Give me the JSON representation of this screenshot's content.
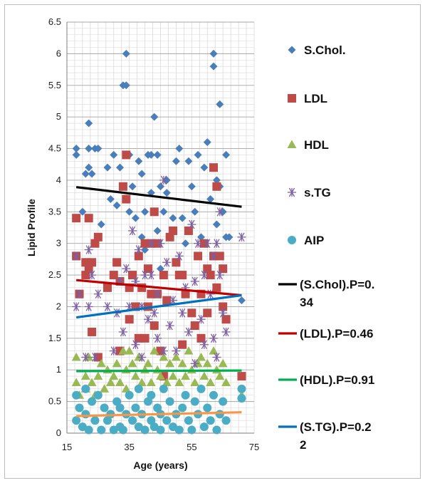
{
  "chart_data": {
    "type": "scatter",
    "xlabel": "Age (years)",
    "ylabel": "Lipid Profile",
    "xlim": [
      15,
      75
    ],
    "ylim": [
      0,
      6.5
    ],
    "x_ticks": [
      "15",
      "35",
      "55",
      "75"
    ],
    "y_ticks": [
      "0",
      "0.5",
      "1",
      "1.5",
      "2",
      "2.5",
      "3",
      "3.5",
      "4",
      "4.5",
      "5",
      "5.5",
      "6",
      "6.5"
    ],
    "grid": true,
    "legend_position": "right",
    "series": [
      {
        "name": "S.Chol.",
        "marker": "diamond",
        "color": "#4a7ebb",
        "points": [
          [
            18,
            4.5
          ],
          [
            18,
            4.4
          ],
          [
            20,
            3.5
          ],
          [
            21,
            4.1
          ],
          [
            22,
            4.9
          ],
          [
            22,
            4.5
          ],
          [
            22,
            4.2
          ],
          [
            23,
            4.1
          ],
          [
            24,
            4.5
          ],
          [
            25,
            4.5
          ],
          [
            26,
            3.3
          ],
          [
            28,
            4.2
          ],
          [
            29,
            3.7
          ],
          [
            30,
            4.4
          ],
          [
            31,
            3.6
          ],
          [
            32,
            4.2
          ],
          [
            33,
            5.5
          ],
          [
            34,
            6.0
          ],
          [
            34,
            5.5
          ],
          [
            35,
            4.4
          ],
          [
            35,
            3.5
          ],
          [
            36,
            3.9
          ],
          [
            37,
            3.4
          ],
          [
            38,
            4.3
          ],
          [
            39,
            4.1
          ],
          [
            39,
            3.1
          ],
          [
            40,
            3.5
          ],
          [
            40,
            2.9
          ],
          [
            41,
            4.4
          ],
          [
            42,
            4.4
          ],
          [
            42,
            3.8
          ],
          [
            43,
            5.0
          ],
          [
            43,
            3.5
          ],
          [
            44,
            4.4
          ],
          [
            44,
            3.2
          ],
          [
            45,
            3.9
          ],
          [
            45,
            2.6
          ],
          [
            46,
            3.5
          ],
          [
            47,
            4.0
          ],
          [
            47,
            3.8
          ],
          [
            48,
            3.1
          ],
          [
            49,
            3.4
          ],
          [
            50,
            4.3
          ],
          [
            51,
            4.5
          ],
          [
            52,
            3.4
          ],
          [
            53,
            3.0
          ],
          [
            54,
            4.3
          ],
          [
            55,
            3.9
          ],
          [
            56,
            3.5
          ],
          [
            57,
            4.4
          ],
          [
            58,
            3.1
          ],
          [
            59,
            4.2
          ],
          [
            60,
            4.6
          ],
          [
            61,
            3.7
          ],
          [
            62,
            6.0
          ],
          [
            62,
            5.8
          ],
          [
            63,
            4.0
          ],
          [
            63,
            3.3
          ],
          [
            64,
            5.2
          ],
          [
            64,
            3.9
          ],
          [
            65,
            3.5
          ],
          [
            66,
            4.4
          ],
          [
            66,
            3.1
          ],
          [
            67,
            3.1
          ],
          [
            71,
            2.1
          ]
        ]
      },
      {
        "name": "LDL",
        "marker": "square",
        "color": "#be4b48",
        "points": [
          [
            18,
            3.4
          ],
          [
            18,
            2.8
          ],
          [
            19,
            2.2
          ],
          [
            21,
            2.7
          ],
          [
            21,
            2.5
          ],
          [
            22,
            3.4
          ],
          [
            22,
            2.6
          ],
          [
            23,
            2.7
          ],
          [
            23,
            1.6
          ],
          [
            24,
            3.0
          ],
          [
            25,
            3.1
          ],
          [
            25,
            1.2
          ],
          [
            28,
            2.3
          ],
          [
            30,
            2.5
          ],
          [
            31,
            2.7
          ],
          [
            32,
            2.4
          ],
          [
            32,
            1.3
          ],
          [
            33,
            3.9
          ],
          [
            34,
            4.4
          ],
          [
            34,
            3.7
          ],
          [
            35,
            2.3
          ],
          [
            35,
            1.8
          ],
          [
            36,
            2.5
          ],
          [
            37,
            2.0
          ],
          [
            38,
            2.8
          ],
          [
            38,
            1.5
          ],
          [
            39,
            2.3
          ],
          [
            40,
            3.0
          ],
          [
            40,
            1.5
          ],
          [
            41,
            2.6
          ],
          [
            41,
            2.0
          ],
          [
            42,
            3.0
          ],
          [
            42,
            2.2
          ],
          [
            43,
            3.5
          ],
          [
            43,
            1.7
          ],
          [
            44,
            3.0
          ],
          [
            44,
            2.2
          ],
          [
            45,
            1.3
          ],
          [
            46,
            2.5
          ],
          [
            46,
            0.9
          ],
          [
            47,
            2.1
          ],
          [
            48,
            3.1
          ],
          [
            49,
            3.2
          ],
          [
            50,
            2.7
          ],
          [
            51,
            2.5
          ],
          [
            52,
            2.5
          ],
          [
            52,
            1.4
          ],
          [
            53,
            2.2
          ],
          [
            54,
            3.2
          ],
          [
            55,
            1.9
          ],
          [
            56,
            1.7
          ],
          [
            57,
            2.8
          ],
          [
            58,
            2.2
          ],
          [
            58,
            1.5
          ],
          [
            59,
            3.0
          ],
          [
            60,
            2.6
          ],
          [
            60,
            1.9
          ],
          [
            61,
            2.5
          ],
          [
            62,
            4.2
          ],
          [
            62,
            2.8
          ],
          [
            63,
            3.9
          ],
          [
            63,
            2.3
          ],
          [
            64,
            2.8
          ],
          [
            65,
            2.6
          ],
          [
            65,
            2.0
          ],
          [
            66,
            1.8
          ],
          [
            71,
            0.9
          ]
        ]
      },
      {
        "name": "HDL",
        "marker": "triangle",
        "color": "#98b954",
        "points": [
          [
            18,
            1.2
          ],
          [
            18,
            0.8
          ],
          [
            19,
            0.6
          ],
          [
            21,
            0.9
          ],
          [
            21,
            0.7
          ],
          [
            22,
            1.2
          ],
          [
            23,
            0.8
          ],
          [
            24,
            0.6
          ],
          [
            25,
            0.9
          ],
          [
            26,
            1.1
          ],
          [
            27,
            0.7
          ],
          [
            28,
            1.0
          ],
          [
            29,
            0.8
          ],
          [
            30,
            0.9
          ],
          [
            31,
            1.1
          ],
          [
            32,
            0.8
          ],
          [
            33,
            1.3
          ],
          [
            34,
            1.0
          ],
          [
            34,
            0.7
          ],
          [
            35,
            1.3
          ],
          [
            36,
            1.1
          ],
          [
            37,
            0.9
          ],
          [
            38,
            1.2
          ],
          [
            39,
            0.8
          ],
          [
            40,
            1.0
          ],
          [
            41,
            1.1
          ],
          [
            42,
            0.8
          ],
          [
            43,
            1.3
          ],
          [
            44,
            1.0
          ],
          [
            45,
            0.9
          ],
          [
            46,
            1.2
          ],
          [
            47,
            0.8
          ],
          [
            48,
            1.1
          ],
          [
            49,
            0.9
          ],
          [
            50,
            1.2
          ],
          [
            51,
            0.8
          ],
          [
            52,
            1.1
          ],
          [
            53,
            0.9
          ],
          [
            54,
            1.3
          ],
          [
            55,
            1.0
          ],
          [
            56,
            0.8
          ],
          [
            57,
            1.1
          ],
          [
            58,
            1.2
          ],
          [
            59,
            0.9
          ],
          [
            60,
            1.1
          ],
          [
            61,
            0.8
          ],
          [
            62,
            1.3
          ],
          [
            63,
            1.0
          ],
          [
            64,
            0.9
          ],
          [
            65,
            1.1
          ],
          [
            66,
            0.8
          ],
          [
            71,
            0.6
          ]
        ]
      },
      {
        "name": "s.TG",
        "marker": "asterisk",
        "color": "#7d60a0",
        "points": [
          [
            18,
            2.8
          ],
          [
            18,
            2.0
          ],
          [
            19,
            2.2
          ],
          [
            21,
            1.2
          ],
          [
            22,
            2.9
          ],
          [
            22,
            2.0
          ],
          [
            23,
            2.5
          ],
          [
            24,
            1.2
          ],
          [
            25,
            2.2
          ],
          [
            28,
            2.0
          ],
          [
            30,
            1.3
          ],
          [
            31,
            1.9
          ],
          [
            32,
            2.4
          ],
          [
            33,
            1.6
          ],
          [
            34,
            2.6
          ],
          [
            35,
            2.0
          ],
          [
            36,
            3.2
          ],
          [
            37,
            2.4
          ],
          [
            37,
            1.4
          ],
          [
            38,
            2.9
          ],
          [
            39,
            2.0
          ],
          [
            39,
            1.2
          ],
          [
            40,
            2.5
          ],
          [
            41,
            1.8
          ],
          [
            42,
            2.5
          ],
          [
            42,
            3.0
          ],
          [
            43,
            1.9
          ],
          [
            44,
            2.2
          ],
          [
            44,
            1.5
          ],
          [
            45,
            3.0
          ],
          [
            46,
            4.0
          ],
          [
            46,
            1.3
          ],
          [
            47,
            2.7
          ],
          [
            48,
            1.7
          ],
          [
            49,
            2.1
          ],
          [
            50,
            1.3
          ],
          [
            51,
            2.8
          ],
          [
            52,
            1.9
          ],
          [
            53,
            2.3
          ],
          [
            54,
            1.6
          ],
          [
            55,
            3.3
          ],
          [
            56,
            2.4
          ],
          [
            56,
            1.1
          ],
          [
            57,
            3.0
          ],
          [
            58,
            1.8
          ],
          [
            59,
            2.5
          ],
          [
            59,
            1.4
          ],
          [
            60,
            3.0
          ],
          [
            61,
            2.2
          ],
          [
            62,
            2.8
          ],
          [
            62,
            1.5
          ],
          [
            63,
            3.0
          ],
          [
            63,
            1.2
          ],
          [
            64,
            3.5
          ],
          [
            64,
            2.5
          ],
          [
            65,
            1.9
          ],
          [
            66,
            1.6
          ],
          [
            71,
            3.1
          ]
        ]
      },
      {
        "name": "AIP",
        "marker": "circle",
        "color": "#4bacc6",
        "points": [
          [
            18,
            0.2
          ],
          [
            18,
            0.6
          ],
          [
            19,
            0.4
          ],
          [
            20,
            0.1
          ],
          [
            21,
            0.7
          ],
          [
            21,
            0.3
          ],
          [
            22,
            0.05
          ],
          [
            23,
            0.5
          ],
          [
            24,
            0.2
          ],
          [
            25,
            0.6
          ],
          [
            26,
            0.05
          ],
          [
            27,
            0.4
          ],
          [
            28,
            0.2
          ],
          [
            29,
            0.3
          ],
          [
            30,
            0.05
          ],
          [
            31,
            0.5
          ],
          [
            32,
            0.1
          ],
          [
            32,
            0.4
          ],
          [
            33,
            0.05
          ],
          [
            34,
            0.3
          ],
          [
            35,
            0.6
          ],
          [
            36,
            0.2
          ],
          [
            37,
            0.4
          ],
          [
            38,
            0.1
          ],
          [
            38,
            0.7
          ],
          [
            39,
            0.3
          ],
          [
            40,
            0.05
          ],
          [
            41,
            0.5
          ],
          [
            42,
            0.2
          ],
          [
            42,
            0.6
          ],
          [
            43,
            0.1
          ],
          [
            44,
            0.4
          ],
          [
            45,
            0.05
          ],
          [
            45,
            0.3
          ],
          [
            46,
            0.7
          ],
          [
            47,
            0.2
          ],
          [
            48,
            0.5
          ],
          [
            49,
            0.1
          ],
          [
            50,
            0.3
          ],
          [
            51,
            0.05
          ],
          [
            52,
            0.4
          ],
          [
            53,
            0.6
          ],
          [
            54,
            0.2
          ],
          [
            55,
            0.05
          ],
          [
            56,
            0.5
          ],
          [
            57,
            0.3
          ],
          [
            58,
            0.7
          ],
          [
            59,
            0.1
          ],
          [
            60,
            0.4
          ],
          [
            61,
            0.2
          ],
          [
            62,
            0.6
          ],
          [
            63,
            0.05
          ],
          [
            64,
            0.3
          ],
          [
            65,
            0.5
          ],
          [
            66,
            0.2
          ],
          [
            71,
            0.7
          ],
          [
            71,
            0.55
          ]
        ]
      }
    ],
    "trendlines": [
      {
        "name": "(S.Chol).P=0.34",
        "legend_lines": [
          "(S.Chol).P=0.",
          "34"
        ],
        "color": "#000000",
        "x": [
          18,
          71
        ],
        "y": [
          3.89,
          3.58
        ]
      },
      {
        "name": "(LDL).P=0.46",
        "legend_lines": [
          "(LDL).P=0.46"
        ],
        "color": "#c00000",
        "x": [
          18,
          71
        ],
        "y": [
          2.42,
          2.18
        ]
      },
      {
        "name": "(HDL).P=0.91",
        "legend_lines": [
          "(HDL).P=0.91"
        ],
        "color": "#00b050",
        "x": [
          18,
          71
        ],
        "y": [
          0.98,
          0.99
        ]
      },
      {
        "name": "(S.TG).P=0.22",
        "legend_lines": [
          "(S.TG).P=0.2",
          "2"
        ],
        "color": "#0070c0",
        "x": [
          18,
          71
        ],
        "y": [
          1.83,
          2.18
        ]
      },
      {
        "name": "",
        "legend_lines": [],
        "color": "#f79646",
        "x": [
          18,
          71
        ],
        "y": [
          0.27,
          0.33
        ]
      }
    ]
  }
}
